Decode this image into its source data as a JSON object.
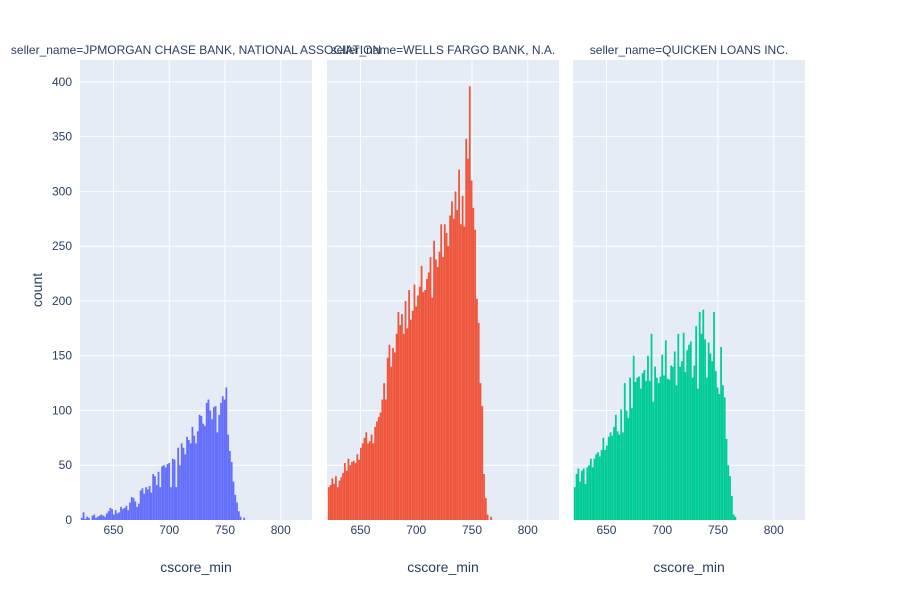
{
  "chart_data": {
    "type": "bar",
    "y_title": "count",
    "ylim": [
      0,
      420
    ],
    "y_ticks": [
      0,
      50,
      100,
      150,
      200,
      250,
      300,
      350,
      400
    ],
    "xlim": [
      620,
      828
    ],
    "x_ticks": [
      650,
      700,
      750,
      800
    ],
    "bin_width": 1.6,
    "colors": [
      "#636efa",
      "#EF553B",
      "#00cc96"
    ],
    "grid": true,
    "facets": [
      {
        "title": "seller_name=JPMORGAN CHASE BANK, NATIONAL ASSOCIATION",
        "x_title": "cscore_min",
        "bin_start": 620.8,
        "values": [
          2,
          7,
          1,
          3,
          2,
          0,
          4,
          5,
          2,
          3,
          4,
          5,
          4,
          3,
          6,
          8,
          11,
          10,
          5,
          9,
          6,
          7,
          12,
          10,
          11,
          13,
          9,
          16,
          21,
          20,
          17,
          12,
          15,
          27,
          29,
          24,
          30,
          28,
          31,
          25,
          42,
          40,
          32,
          44,
          30,
          49,
          50,
          48,
          51,
          52,
          30,
          56,
          55,
          30,
          66,
          50,
          70,
          66,
          60,
          76,
          73,
          70,
          85,
          77,
          70,
          81,
          96,
          95,
          88,
          86,
          107,
          110,
          100,
          92,
          103,
          104,
          80,
          96,
          107,
          113,
          110,
          121,
          78,
          63,
          53,
          35,
          23,
          16,
          8,
          3,
          0,
          2
        ]
      },
      {
        "title": "seller_name=WELLS FARGO BANK, N.A.",
        "x_title": "cscore_min",
        "bin_start": 620.8,
        "values": [
          30,
          32,
          38,
          33,
          40,
          30,
          36,
          39,
          43,
          52,
          45,
          56,
          50,
          53,
          54,
          52,
          60,
          55,
          66,
          70,
          75,
          80,
          70,
          72,
          78,
          70,
          85,
          90,
          94,
          98,
          110,
          125,
          110,
          148,
          160,
          140,
          157,
          153,
          170,
          190,
          178,
          188,
          170,
          200,
          175,
          210,
          183,
          191,
          215,
          195,
          205,
          213,
          232,
          208,
          210,
          220,
          226,
          240,
          203,
          255,
          238,
          231,
          245,
          270,
          240,
          270,
          262,
          250,
          278,
          291,
          275,
          300,
          283,
          320,
          270,
          296,
          268,
          348,
          330,
          396,
          310,
          285,
          265,
          202,
          180,
          125,
          104,
          42,
          20,
          5,
          0,
          3
        ]
      },
      {
        "title": "seller_name=QUICKEN LOANS INC.",
        "x_title": "cscore_min",
        "bin_start": 620.8,
        "values": [
          30,
          42,
          47,
          35,
          45,
          47,
          33,
          48,
          50,
          56,
          48,
          56,
          60,
          62,
          58,
          64,
          75,
          64,
          68,
          76,
          80,
          77,
          85,
          96,
          81,
          78,
          101,
          80,
          125,
          100,
          93,
          130,
          102,
          150,
          126,
          130,
          131,
          120,
          134,
          137,
          127,
          150,
          127,
          170,
          108,
          140,
          130,
          125,
          131,
          151,
          132,
          164,
          129,
          128,
          141,
          140,
          154,
          123,
          170,
          140,
          145,
          171,
          135,
          155,
          160,
          163,
          130,
          141,
          177,
          120,
          190,
          170,
          192,
          165,
          130,
          162,
          152,
          145,
          190,
          136,
          121,
          115,
          158,
          123,
          112,
          74,
          50,
          40,
          22,
          5,
          3
        ]
      }
    ]
  }
}
